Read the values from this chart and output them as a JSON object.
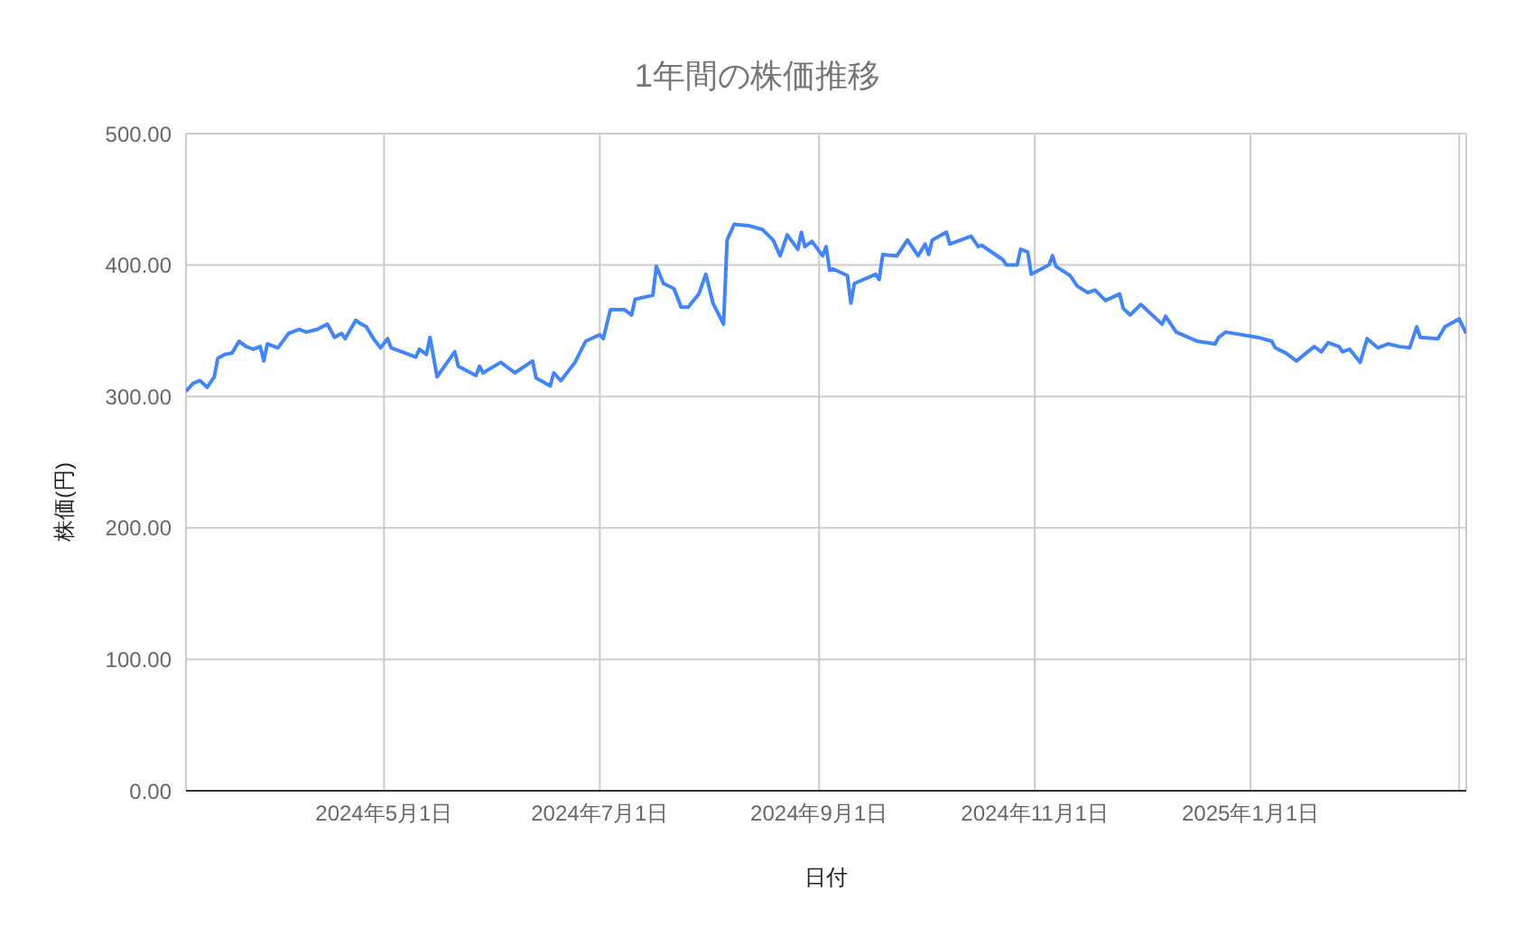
{
  "chart_data": {
    "type": "line",
    "title": "1年間の株価推移",
    "xlabel": "日付",
    "ylabel": "株価(円)",
    "x": [
      "2024-03-06",
      "2024-03-08",
      "2024-03-10",
      "2024-03-12",
      "2024-03-14",
      "2024-03-15",
      "2024-03-17",
      "2024-03-19",
      "2024-03-21",
      "2024-03-23",
      "2024-03-25",
      "2024-03-27",
      "2024-03-28",
      "2024-03-29",
      "2024-04-01",
      "2024-04-04",
      "2024-04-07",
      "2024-04-09",
      "2024-04-12",
      "2024-04-15",
      "2024-04-17",
      "2024-04-19",
      "2024-04-20",
      "2024-04-23",
      "2024-04-24",
      "2024-04-26",
      "2024-04-28",
      "2024-04-30",
      "2024-05-02",
      "2024-05-03",
      "2024-05-07",
      "2024-05-10",
      "2024-05-11",
      "2024-05-13",
      "2024-05-14",
      "2024-05-16",
      "2024-05-21",
      "2024-05-22",
      "2024-05-27",
      "2024-05-28",
      "2024-05-29",
      "2024-06-03",
      "2024-06-07",
      "2024-06-12",
      "2024-06-13",
      "2024-06-17",
      "2024-06-18",
      "2024-06-20",
      "2024-06-24",
      "2024-06-27",
      "2024-07-01",
      "2024-07-02",
      "2024-07-04",
      "2024-07-08",
      "2024-07-10",
      "2024-07-11",
      "2024-07-16",
      "2024-07-17",
      "2024-07-19",
      "2024-07-22",
      "2024-07-24",
      "2024-07-26",
      "2024-07-29",
      "2024-07-31",
      "2024-08-02",
      "2024-08-05",
      "2024-08-06",
      "2024-08-08",
      "2024-08-12",
      "2024-08-16",
      "2024-08-19",
      "2024-08-21",
      "2024-08-23",
      "2024-08-26",
      "2024-08-27",
      "2024-08-28",
      "2024-08-30",
      "2024-09-02",
      "2024-09-03",
      "2024-09-04",
      "2024-09-05",
      "2024-09-09",
      "2024-09-10",
      "2024-09-11",
      "2024-09-17",
      "2024-09-18",
      "2024-09-19",
      "2024-09-23",
      "2024-09-26",
      "2024-09-29",
      "2024-10-01",
      "2024-10-02",
      "2024-10-03",
      "2024-10-07",
      "2024-10-08",
      "2024-10-14",
      "2024-10-16",
      "2024-10-17",
      "2024-10-23",
      "2024-10-24",
      "2024-10-27",
      "2024-10-28",
      "2024-10-30",
      "2024-10-31",
      "2024-11-05",
      "2024-11-06",
      "2024-11-07",
      "2024-11-11",
      "2024-11-13",
      "2024-11-16",
      "2024-11-18",
      "2024-11-21",
      "2024-11-25",
      "2024-11-26",
      "2024-11-28",
      "2024-12-01",
      "2024-12-07",
      "2024-12-08",
      "2024-12-11",
      "2024-12-17",
      "2024-12-22",
      "2024-12-23",
      "2024-12-25",
      "2025-01-03",
      "2025-01-07",
      "2025-01-08",
      "2025-01-11",
      "2025-01-14",
      "2025-01-19",
      "2025-01-21",
      "2025-01-23",
      "2025-01-26",
      "2025-01-27",
      "2025-01-29",
      "2025-02-01",
      "2025-02-03",
      "2025-02-06",
      "2025-02-09",
      "2025-02-12",
      "2025-02-15",
      "2025-02-17",
      "2025-02-18",
      "2025-02-23",
      "2025-02-25",
      "2025-03-01",
      "2025-03-03"
    ],
    "series": [
      {
        "color": "#4285f4",
        "values": [
          304,
          310,
          312,
          307,
          315,
          329,
          332,
          333,
          342,
          338,
          336,
          338,
          327,
          340,
          337,
          348,
          351,
          349,
          351,
          355,
          345,
          348,
          344,
          358,
          356,
          353,
          344,
          337,
          344,
          337,
          333,
          330,
          336,
          332,
          345,
          315,
          334,
          323,
          316,
          323,
          318,
          326,
          318,
          327,
          314,
          308,
          318,
          312,
          326,
          342,
          347,
          344,
          366,
          366,
          362,
          374,
          377,
          399,
          386,
          382,
          368,
          368,
          378,
          393,
          371,
          355,
          419,
          431,
          430,
          427,
          419,
          407,
          423,
          412,
          425,
          414,
          418,
          407,
          414,
          396,
          397,
          392,
          371,
          386,
          393,
          389,
          408,
          407,
          419,
          407,
          416,
          408,
          419,
          425,
          416,
          422,
          414,
          415,
          404,
          400,
          400,
          412,
          410,
          393,
          400,
          407,
          399,
          392,
          384,
          379,
          381,
          373,
          378,
          367,
          362,
          370,
          355,
          361,
          349,
          342,
          340,
          345,
          349,
          345,
          342,
          337,
          333,
          327,
          338,
          334,
          341,
          338,
          334,
          336,
          326,
          344,
          337,
          340,
          338,
          337,
          353,
          345,
          344,
          353,
          359,
          348
        ]
      }
    ],
    "xlim": [
      "2024-03-06",
      "2025-03-03"
    ],
    "xticks": [
      {
        "value": "2024-05-01",
        "label": "2024年5月1日"
      },
      {
        "value": "2024-07-01",
        "label": "2024年7月1日"
      },
      {
        "value": "2024-09-01",
        "label": "2024年9月1日"
      },
      {
        "value": "2024-11-01",
        "label": "2024年11月1日"
      },
      {
        "value": "2025-01-01",
        "label": "2025年1月1日"
      },
      {
        "value": "2025-03-01",
        "label": null
      }
    ],
    "ylim": [
      0,
      500
    ],
    "yticks": [
      {
        "value": 0,
        "label": "0.00"
      },
      {
        "value": 100,
        "label": "100.00"
      },
      {
        "value": 200,
        "label": "200.00"
      },
      {
        "value": 300,
        "label": "300.00"
      },
      {
        "value": 400,
        "label": "400.00"
      },
      {
        "value": 500,
        "label": "500.00"
      }
    ],
    "grid": true,
    "legend": false,
    "marker": "none",
    "line_style": "solid"
  }
}
